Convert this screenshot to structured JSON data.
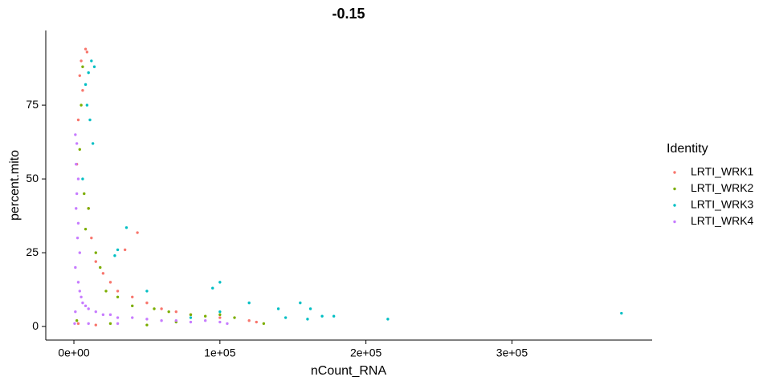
{
  "chart_data": {
    "type": "scatter",
    "title": "-0.15",
    "x_label": "nCount_RNA",
    "y_label": "percent.mito",
    "legend_title": "Identity",
    "xlim": [
      -19260,
      396000
    ],
    "ylim": [
      -4.6,
      100.3
    ],
    "xticks": [
      {
        "value": 0,
        "label": "0e+00"
      },
      {
        "value": 100000,
        "label": "1e+05"
      },
      {
        "value": 200000,
        "label": "2e+05"
      },
      {
        "value": 300000,
        "label": "3e+05"
      }
    ],
    "yticks": [
      0,
      25,
      50,
      75
    ],
    "grid": false,
    "legend": "right",
    "series": [
      {
        "name": "LRTI_WRK1",
        "color": "#F8766D",
        "x": [
          5000,
          8000,
          9000,
          4000,
          3000,
          2000,
          6000,
          10000,
          12000,
          15000,
          20000,
          25000,
          30000,
          40000,
          43500,
          35000,
          50000,
          60000,
          70000,
          80000,
          100000,
          120000,
          125000,
          3000,
          15000
        ],
        "values": [
          90,
          94,
          93,
          85,
          70,
          55,
          80,
          40,
          30,
          22,
          18,
          15,
          12,
          10,
          31.8,
          26,
          8,
          6,
          5,
          4,
          3,
          2,
          1.5,
          1,
          0.5
        ]
      },
      {
        "name": "LRTI_WRK2",
        "color": "#7CAE00",
        "x": [
          6000,
          5000,
          4000,
          7000,
          10000,
          8000,
          15000,
          18000,
          22000,
          30000,
          40000,
          55000,
          65000,
          80000,
          90000,
          100000,
          110000,
          130000,
          2000,
          25000,
          50000,
          70000
        ],
        "values": [
          88,
          75,
          60,
          45,
          40,
          33,
          25,
          20,
          12,
          10,
          7,
          6,
          5,
          4,
          3.5,
          4,
          3,
          1,
          2,
          1,
          0.5,
          1.5
        ]
      },
      {
        "name": "LRTI_WRK3",
        "color": "#00BFC4",
        "x": [
          12000,
          14000,
          10000,
          8000,
          9000,
          11000,
          13000,
          6000,
          36000,
          30000,
          28000,
          50000,
          100000,
          95000,
          120000,
          140000,
          155000,
          162000,
          170000,
          178000,
          215000,
          375000,
          100000,
          80000,
          160000,
          145000
        ],
        "values": [
          90,
          88,
          86,
          82,
          75,
          70,
          62,
          50,
          33.5,
          26,
          24,
          12,
          15,
          13,
          8,
          6,
          8,
          6,
          3.5,
          3.5,
          2.5,
          4.5,
          5,
          3,
          2.5,
          3
        ]
      },
      {
        "name": "LRTI_WRK4",
        "color": "#C77CFF",
        "x": [
          1000,
          2000,
          3000,
          1500,
          2500,
          1000,
          3000,
          4000,
          5000,
          6000,
          8000,
          10000,
          15000,
          20000,
          25000,
          30000,
          40000,
          50000,
          60000,
          70000,
          80000,
          90000,
          100000,
          105000,
          1000,
          500,
          10000,
          30000,
          3000,
          2000,
          1500,
          4000
        ],
        "values": [
          65,
          62,
          50,
          40,
          30,
          20,
          15,
          12,
          10,
          8,
          7,
          6,
          5,
          4,
          4,
          3,
          3,
          2.5,
          2,
          2,
          1.5,
          2,
          1.5,
          1,
          5,
          1,
          1,
          1,
          35,
          45,
          55,
          25
        ]
      }
    ]
  }
}
